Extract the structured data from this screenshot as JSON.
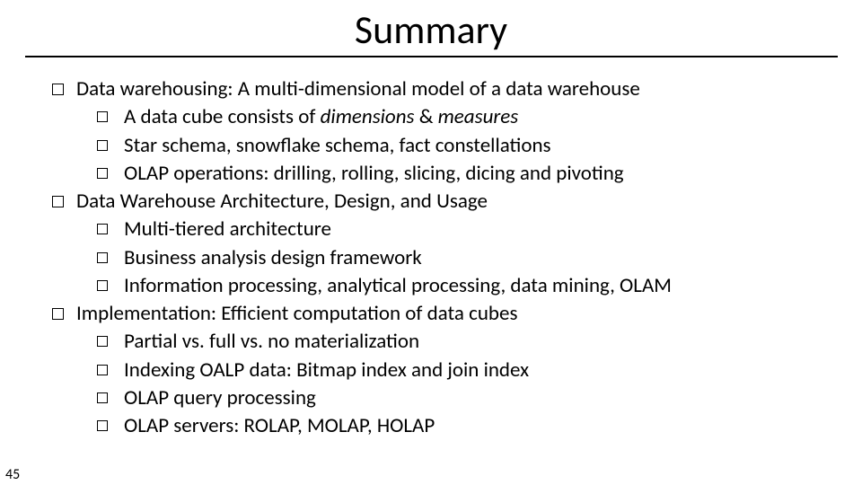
{
  "slide": {
    "title": "Summary",
    "number": "45",
    "title_fontsize": 44,
    "body_fontsize": 23,
    "text_color": "#000000",
    "background_color": "#ffffff",
    "rule_color": "#000000",
    "bullets": [
      {
        "level": 1,
        "text": "Data warehousing: A multi-dimensional model of a data warehouse"
      },
      {
        "level": 2,
        "html": "A data cube consists of <span class=\"em\">dimensions</span> &amp; <span class=\"em\">measures</span>"
      },
      {
        "level": 2,
        "text": "Star schema, snowflake schema, fact constellations"
      },
      {
        "level": 2,
        "text": "OLAP operations: drilling, rolling, slicing, dicing and pivoting"
      },
      {
        "level": 1,
        "text": "Data Warehouse Architecture, Design, and Usage"
      },
      {
        "level": 2,
        "text": "Multi-tiered architecture"
      },
      {
        "level": 2,
        "text": "Business analysis design framework"
      },
      {
        "level": 2,
        "text": "Information processing, analytical processing, data mining, OLAM"
      },
      {
        "level": 1,
        "text": "Implementation: Efficient computation of data cubes"
      },
      {
        "level": 2,
        "text": "Partial vs. full vs. no materialization"
      },
      {
        "level": 2,
        "text": "Indexing OALP data: Bitmap index and join index"
      },
      {
        "level": 2,
        "text": "OLAP query processing"
      },
      {
        "level": 2,
        "text": "OLAP servers: ROLAP, MOLAP, HOLAP"
      }
    ]
  }
}
